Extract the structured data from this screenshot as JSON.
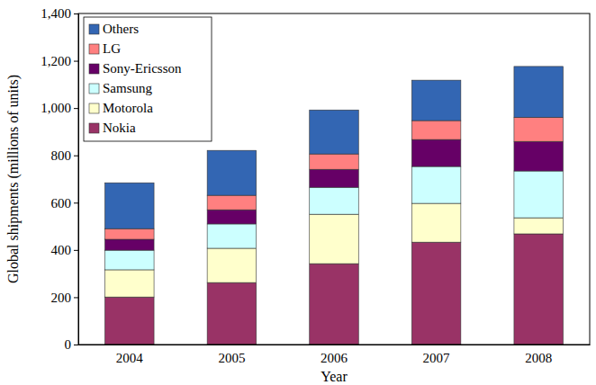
{
  "chart_data": {
    "type": "bar",
    "stacked": true,
    "x_label": "Year",
    "y_label": "Global shipments (millions of units)",
    "categories": [
      "2004",
      "2005",
      "2006",
      "2007",
      "2008"
    ],
    "series": [
      {
        "name": "Nokia",
        "color": "#993366",
        "values": [
          201,
          262,
          342,
          433,
          468
        ]
      },
      {
        "name": "Motorola",
        "color": "#ffffcc",
        "values": [
          115,
          145,
          209,
          164,
          68
        ]
      },
      {
        "name": "Samsung",
        "color": "#ccffff",
        "values": [
          83,
          103,
          114,
          156,
          198
        ]
      },
      {
        "name": "Sony-Ericsson",
        "color": "#660066",
        "values": [
          46,
          60,
          76,
          114,
          125
        ]
      },
      {
        "name": "LG",
        "color": "#ff8080",
        "values": [
          45,
          61,
          65,
          80,
          102
        ]
      },
      {
        "name": "Others",
        "color": "#3366b3",
        "values": [
          194,
          190,
          186,
          171,
          215
        ]
      }
    ],
    "ylim": [
      0,
      1400
    ],
    "yticks": [
      0,
      200,
      400,
      600,
      800,
      {
        "value": 1000,
        "label": "1,000"
      },
      {
        "value": 1200,
        "label": "1,200"
      },
      {
        "value": 1400,
        "label": "1,400"
      }
    ],
    "grid": false,
    "legend": "upper left"
  }
}
